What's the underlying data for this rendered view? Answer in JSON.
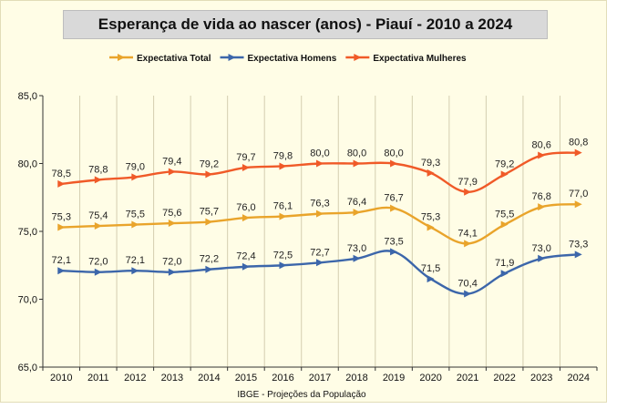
{
  "chart_data": {
    "type": "line",
    "title": "Esperança de vida ao nascer (anos) - Piauí - 2010 a 2024",
    "source": "IBGE - Projeções da População",
    "categories": [
      "2010",
      "2011",
      "2012",
      "2013",
      "2014",
      "2015",
      "2016",
      "2017",
      "2018",
      "2019",
      "2020",
      "2021",
      "2022",
      "2023",
      "2024"
    ],
    "y_ticks": [
      "65,0",
      "70,0",
      "75,0",
      "80,0",
      "85,0"
    ],
    "ylim": [
      65,
      85
    ],
    "grid": "vertical",
    "legend_position": "top",
    "series": [
      {
        "name": "Expectativa Total",
        "color": "#e9a42b",
        "values": [
          75.3,
          75.4,
          75.5,
          75.6,
          75.7,
          76.0,
          76.1,
          76.3,
          76.4,
          76.7,
          75.3,
          74.1,
          75.5,
          76.8,
          77.0
        ],
        "labels": [
          "75,3",
          "75,4",
          "75,5",
          "75,6",
          "75,7",
          "76,0",
          "76,1",
          "76,3",
          "76,4",
          "76,7",
          "75,3",
          "74,1",
          "75,5",
          "76,8",
          "77,0"
        ]
      },
      {
        "name": "Expectativa Homens",
        "color": "#3c66aa",
        "values": [
          72.1,
          72.0,
          72.1,
          72.0,
          72.2,
          72.4,
          72.5,
          72.7,
          73.0,
          73.5,
          71.5,
          70.4,
          71.9,
          73.0,
          73.3
        ],
        "labels": [
          "72,1",
          "72,0",
          "72,1",
          "72,0",
          "72,2",
          "72,4",
          "72,5",
          "72,7",
          "73,0",
          "73,5",
          "71,5",
          "70,4",
          "71,9",
          "73,0",
          "73,3"
        ]
      },
      {
        "name": "Expectativa Mulheres",
        "color": "#f05a28",
        "values": [
          78.5,
          78.8,
          79.0,
          79.4,
          79.2,
          79.7,
          79.8,
          80.0,
          80.0,
          80.0,
          79.3,
          77.9,
          79.2,
          80.6,
          80.8
        ],
        "labels": [
          "78,5",
          "78,8",
          "79,0",
          "79,4",
          "79,2",
          "79,7",
          "79,8",
          "80,0",
          "80,0",
          "80,0",
          "79,3",
          "77,9",
          "79,2",
          "80,6",
          "80,8"
        ]
      }
    ]
  }
}
